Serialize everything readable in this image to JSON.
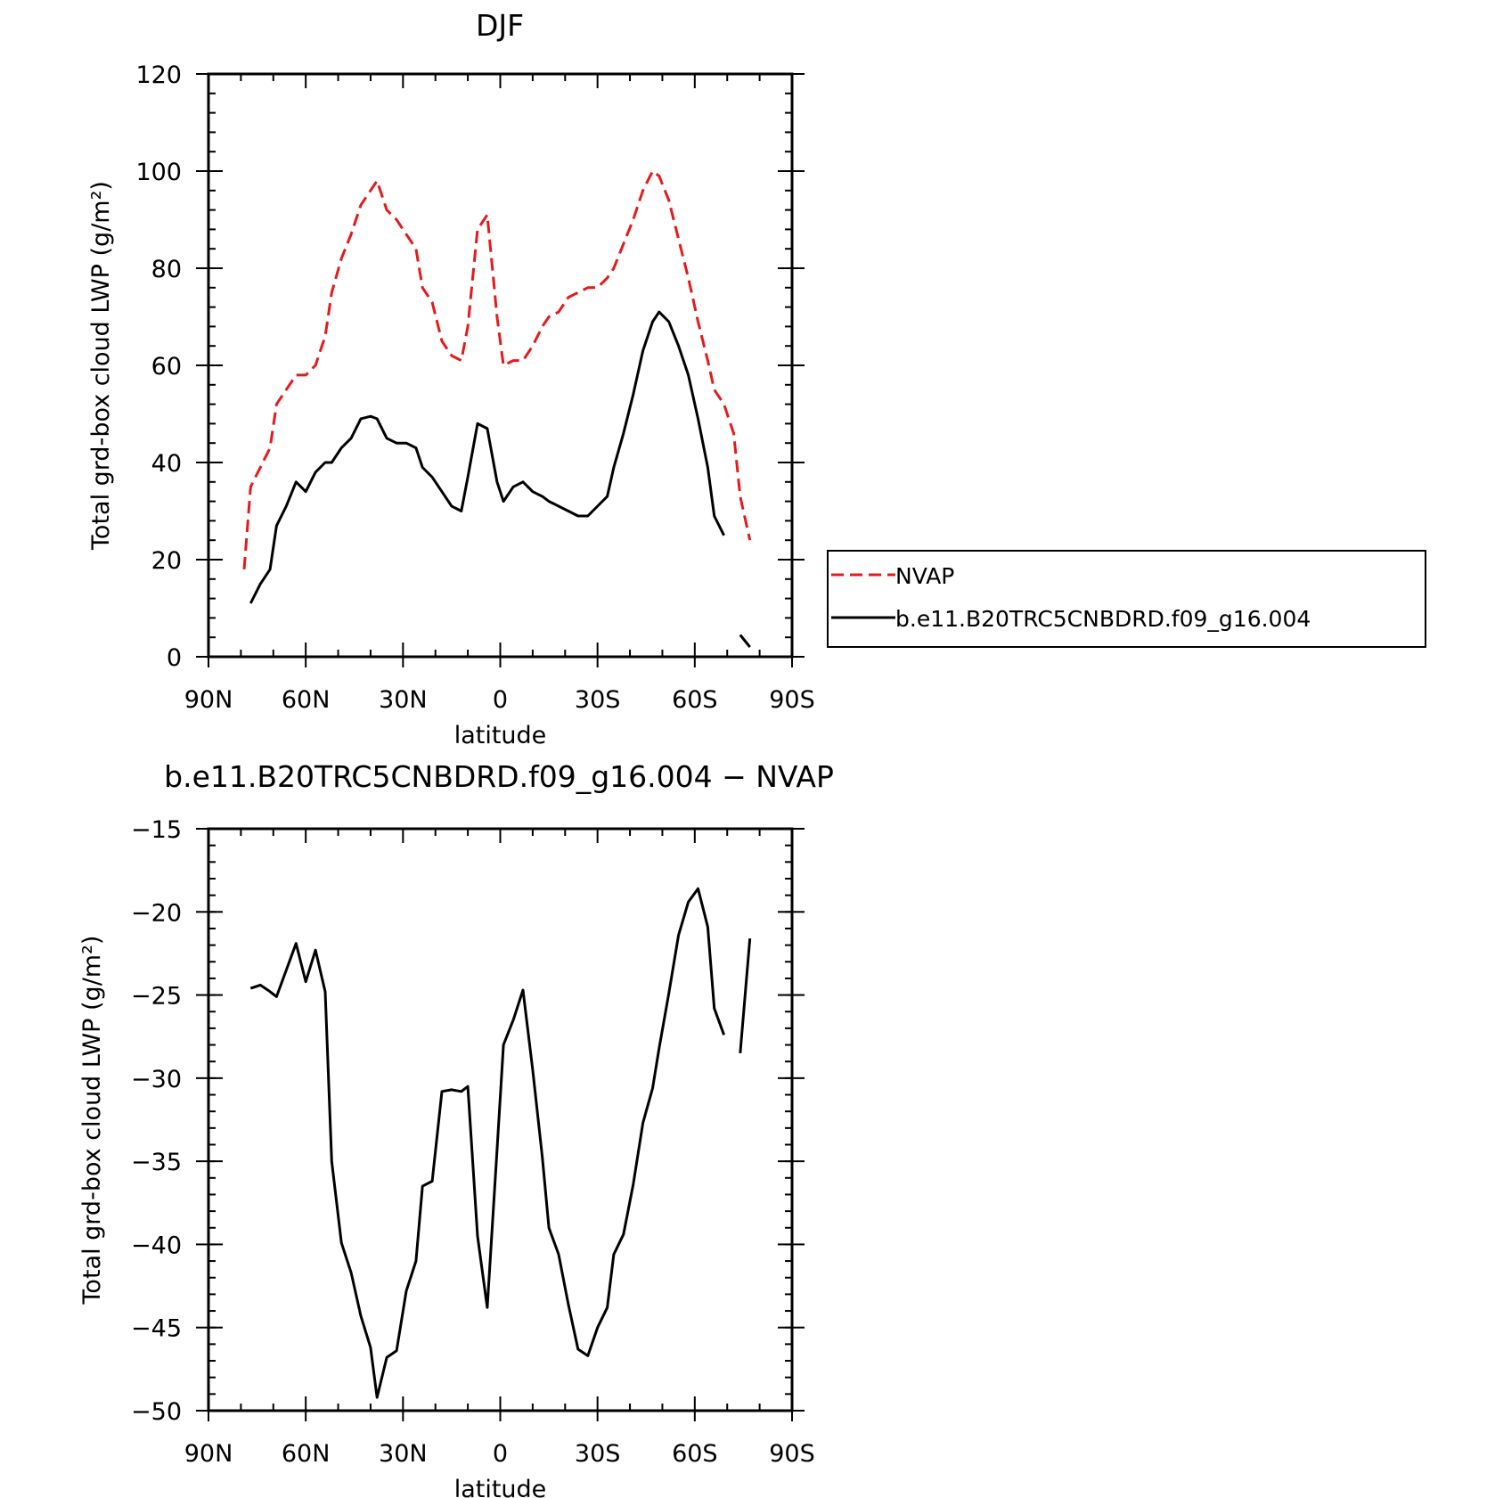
{
  "chart_data": [
    {
      "type": "line",
      "title": "DJF",
      "xlabel": "latitude",
      "ylabel": "Total grd-box cloud LWP (g/m²)",
      "xlim": [
        -90,
        90
      ],
      "ylim": [
        0,
        120
      ],
      "x_ticks": [
        {
          "value": -90,
          "label": "90N"
        },
        {
          "value": -60,
          "label": "60N"
        },
        {
          "value": -30,
          "label": "30N"
        },
        {
          "value": 0,
          "label": "0"
        },
        {
          "value": 30,
          "label": "30S"
        },
        {
          "value": 60,
          "label": "60S"
        },
        {
          "value": 90,
          "label": "90S"
        }
      ],
      "y_ticks": [
        {
          "value": 0,
          "label": "0"
        },
        {
          "value": 20,
          "label": "20"
        },
        {
          "value": 40,
          "label": "40"
        },
        {
          "value": 60,
          "label": "60"
        },
        {
          "value": 80,
          "label": "80"
        },
        {
          "value": 100,
          "label": "100"
        },
        {
          "value": 120,
          "label": "120"
        }
      ],
      "legend": "right",
      "series": [
        {
          "name": "NVAP",
          "color": "#e41a1c",
          "dash": "dashed",
          "points": [
            [
              -79,
              18
            ],
            [
              -77,
              35
            ],
            [
              -74,
              39
            ],
            [
              -71,
              43
            ],
            [
              -69,
              52
            ],
            [
              -66,
              55
            ],
            [
              -63,
              58
            ],
            [
              -60,
              58
            ],
            [
              -57,
              60
            ],
            [
              -54,
              66
            ],
            [
              -52,
              75
            ],
            [
              -49,
              82
            ],
            [
              -46,
              87
            ],
            [
              -43,
              93
            ],
            [
              -40,
              96
            ],
            [
              -38,
              98
            ],
            [
              -35,
              92
            ],
            [
              -32,
              90
            ],
            [
              -29,
              87
            ],
            [
              -26,
              84
            ],
            [
              -24,
              76
            ],
            [
              -21,
              73
            ],
            [
              -18,
              65
            ],
            [
              -15,
              62
            ],
            [
              -12,
              61
            ],
            [
              -10,
              68
            ],
            [
              -7,
              88
            ],
            [
              -4,
              91
            ],
            [
              -1,
              70
            ],
            [
              1,
              60
            ],
            [
              4,
              61
            ],
            [
              7,
              61
            ],
            [
              10,
              64
            ],
            [
              13,
              68
            ],
            [
              15,
              70
            ],
            [
              18,
              71
            ],
            [
              21,
              74
            ],
            [
              24,
              75
            ],
            [
              27,
              76
            ],
            [
              30,
              76
            ],
            [
              33,
              78
            ],
            [
              35,
              80
            ],
            [
              38,
              85
            ],
            [
              41,
              90
            ],
            [
              44,
              96
            ],
            [
              47,
              100
            ],
            [
              49,
              99
            ],
            [
              52,
              94
            ],
            [
              55,
              86
            ],
            [
              58,
              78
            ],
            [
              61,
              69
            ],
            [
              64,
              61
            ],
            [
              66,
              55
            ],
            [
              69,
              52
            ],
            [
              72,
              46
            ],
            [
              74,
              33
            ],
            [
              77,
              24
            ]
          ]
        },
        {
          "name": "b.e11.B20TRC5CNBDRD.f09_g16.004",
          "color": "#000000",
          "dash": "solid",
          "points": [
            [
              -77,
              11
            ],
            [
              -74,
              15
            ],
            [
              -71,
              18
            ],
            [
              -69,
              27
            ],
            [
              -66,
              31
            ],
            [
              -63,
              36
            ],
            [
              -60,
              34
            ],
            [
              -57,
              38
            ],
            [
              -54,
              40
            ],
            [
              -52,
              40
            ],
            [
              -49,
              43
            ],
            [
              -46,
              45
            ],
            [
              -43,
              49
            ],
            [
              -40,
              49.5
            ],
            [
              -38,
              49
            ],
            [
              -35,
              45
            ],
            [
              -32,
              44
            ],
            [
              -29,
              44
            ],
            [
              -26,
              43
            ],
            [
              -24,
              39
            ],
            [
              -21,
              37
            ],
            [
              -18,
              34
            ],
            [
              -15,
              31
            ],
            [
              -12,
              30
            ],
            [
              -10,
              37
            ],
            [
              -7,
              48
            ],
            [
              -4,
              47
            ],
            [
              -1,
              36
            ],
            [
              1,
              32
            ],
            [
              4,
              35
            ],
            [
              7,
              36
            ],
            [
              10,
              34
            ],
            [
              13,
              33
            ],
            [
              15,
              32
            ],
            [
              18,
              31
            ],
            [
              21,
              30
            ],
            [
              24,
              29
            ],
            [
              27,
              29
            ],
            [
              30,
              31
            ],
            [
              33,
              33
            ],
            [
              35,
              39
            ],
            [
              38,
              46
            ],
            [
              41,
              54
            ],
            [
              44,
              63
            ],
            [
              47,
              69
            ],
            [
              49,
              71
            ],
            [
              52,
              69
            ],
            [
              55,
              64
            ],
            [
              58,
              58
            ],
            [
              61,
              49
            ],
            [
              64,
              39
            ],
            [
              66,
              29
            ],
            [
              69,
              25
            ],
            [
              null,
              null
            ],
            [
              74,
              4.5
            ],
            [
              77,
              2
            ]
          ]
        }
      ]
    },
    {
      "type": "line",
      "title": "b.e11.B20TRC5CNBDRD.f09_g16.004 − NVAP",
      "xlabel": "latitude",
      "ylabel": "Total grd-box cloud LWP (g/m²)",
      "xlim": [
        -90,
        90
      ],
      "ylim": [
        -50,
        -15
      ],
      "x_ticks": [
        {
          "value": -90,
          "label": "90N"
        },
        {
          "value": -60,
          "label": "60N"
        },
        {
          "value": -30,
          "label": "30N"
        },
        {
          "value": 0,
          "label": "0"
        },
        {
          "value": 30,
          "label": "30S"
        },
        {
          "value": 60,
          "label": "60S"
        },
        {
          "value": 90,
          "label": "90S"
        }
      ],
      "y_ticks": [
        {
          "value": -50,
          "label": "−50"
        },
        {
          "value": -45,
          "label": "−45"
        },
        {
          "value": -40,
          "label": "−40"
        },
        {
          "value": -35,
          "label": "−35"
        },
        {
          "value": -30,
          "label": "−30"
        },
        {
          "value": -25,
          "label": "−25"
        },
        {
          "value": -20,
          "label": "−20"
        },
        {
          "value": -15,
          "label": "−15"
        }
      ],
      "series": [
        {
          "color": "#000000",
          "dash": "solid",
          "points": [
            [
              -77,
              -24.6
            ],
            [
              -74,
              -24.4
            ],
            [
              -71,
              -24.8
            ],
            [
              -69,
              -25.1
            ],
            [
              -66,
              -23.5
            ],
            [
              -63,
              -21.9
            ],
            [
              -60,
              -24.2
            ],
            [
              -57,
              -22.3
            ],
            [
              -54,
              -24.8
            ],
            [
              -52,
              -35
            ],
            [
              -49,
              -39.9
            ],
            [
              -46,
              -41.7
            ],
            [
              -43,
              -44.3
            ],
            [
              -40,
              -46.2
            ],
            [
              -38,
              -49.2
            ],
            [
              -35,
              -46.8
            ],
            [
              -32,
              -46.4
            ],
            [
              -29,
              -42.8
            ],
            [
              -26,
              -41
            ],
            [
              -24,
              -36.5
            ],
            [
              -21,
              -36.2
            ],
            [
              -18,
              -30.8
            ],
            [
              -15,
              -30.7
            ],
            [
              -12,
              -30.8
            ],
            [
              -10,
              -30.5
            ],
            [
              -7,
              -39.5
            ],
            [
              -4,
              -43.8
            ],
            [
              -1,
              -34.3
            ],
            [
              1,
              -28
            ],
            [
              4,
              -26.5
            ],
            [
              7,
              -24.7
            ],
            [
              10,
              -29.5
            ],
            [
              13,
              -34.8
            ],
            [
              15,
              -39
            ],
            [
              18,
              -40.6
            ],
            [
              21,
              -43.6
            ],
            [
              24,
              -46.3
            ],
            [
              27,
              -46.7
            ],
            [
              30,
              -45
            ],
            [
              33,
              -43.8
            ],
            [
              35,
              -40.6
            ],
            [
              38,
              -39.4
            ],
            [
              41,
              -36.4
            ],
            [
              44,
              -32.7
            ],
            [
              47,
              -30.6
            ],
            [
              49,
              -28.2
            ],
            [
              52,
              -24.9
            ],
            [
              55,
              -21.4
            ],
            [
              58,
              -19.4
            ],
            [
              61,
              -18.6
            ],
            [
              64,
              -20.9
            ],
            [
              66,
              -25.8
            ],
            [
              69,
              -27.4
            ],
            [
              null,
              null
            ],
            [
              74,
              -28.5
            ],
            [
              77,
              -21.6
            ]
          ]
        }
      ]
    }
  ]
}
